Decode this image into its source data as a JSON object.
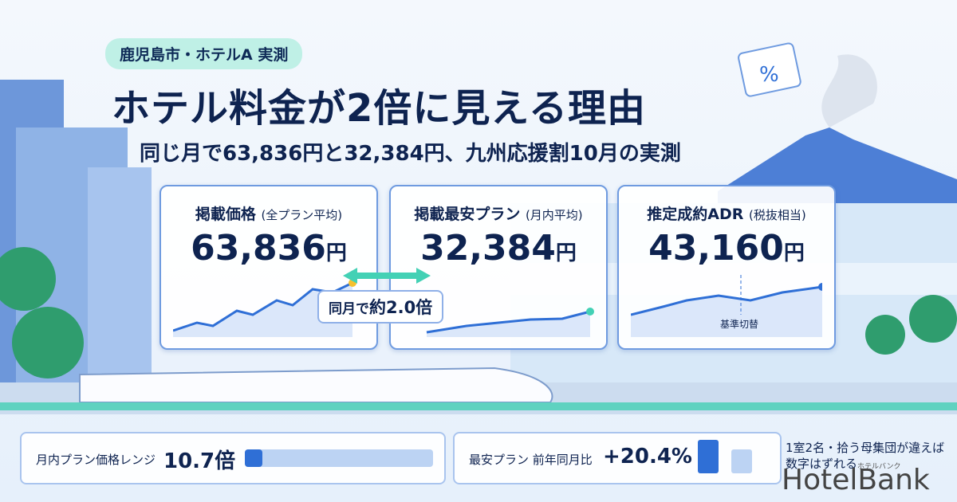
{
  "badge": "鹿児島市・ホテルA 実測",
  "title": "ホテル料金が2倍に見える理由",
  "subtitle": "同じ月で63,836円と32,384円、九州応援割10月の実測",
  "cards": [
    {
      "label": "掲載価格",
      "note": "(全プラン平均)",
      "value": "63,836",
      "unit": "円"
    },
    {
      "label": "掲載最安プラン",
      "note": "(月内平均)",
      "value": "32,384",
      "unit": "円"
    },
    {
      "label": "推定成約ADR",
      "note": "(税抜相当)",
      "value": "43,160",
      "unit": "円",
      "annotation": "基準切替"
    }
  ],
  "comparison": {
    "prefix": "同月で",
    "value": "約2.0倍"
  },
  "stats": [
    {
      "label": "月内プラン価格レンジ",
      "value": "10.7倍"
    },
    {
      "label": "最安プラン 前年同月比",
      "value": "+20.4%"
    }
  ],
  "footnote": "1室2名・拾う母集団が違えば数字はずれる",
  "logo": {
    "name": "HotelBank",
    "reading": "ホテルバンク"
  }
}
